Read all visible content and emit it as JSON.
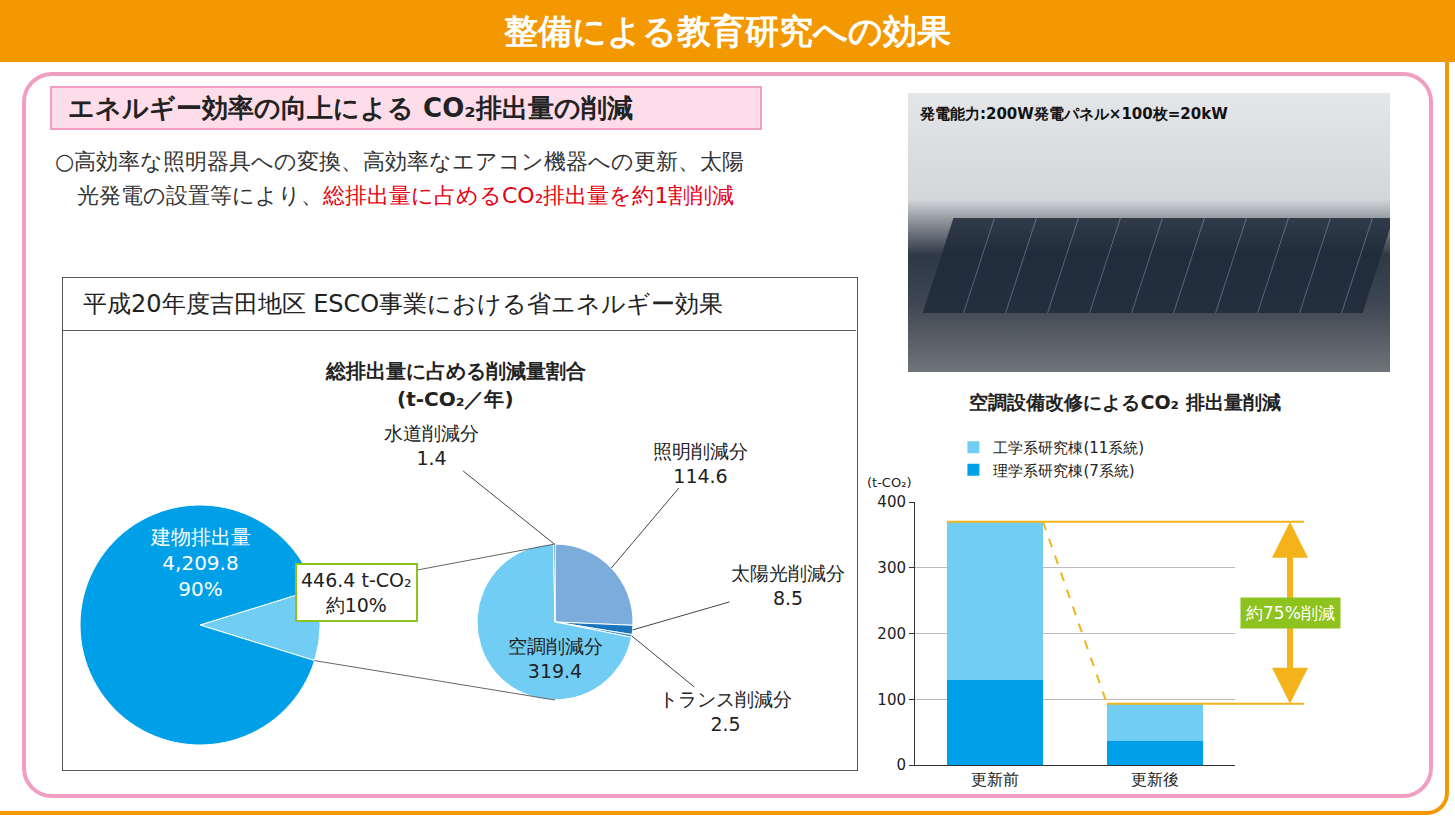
{
  "header": {
    "title": "整備による教育研究への効果"
  },
  "section": {
    "title": "エネルギー効率の向上による CO₂排出量の削減",
    "text": [
      {
        "text": "○高効率な照明器具への変換、高効率なエアコン機器への更新、太陽光発電の設置等により、",
        "color": "#333333"
      },
      {
        "text": "総排出量に占めるCO₂排出量を約1割削減",
        "color": "#e60012"
      }
    ]
  },
  "photo": {
    "caption": "発電能力:200W発電パネル×100枚=20kW"
  },
  "chart_data": [
    {
      "type": "pie",
      "title": "平成20年度吉田地区 ESCO事業における省エネルギー効果",
      "subtitle": [
        "総排出量に占める削減量割合",
        "(t-CO₂／年)"
      ],
      "data_labels": true,
      "pies": [
        {
          "categories": [
            null,
            "建物排出量"
          ],
          "values": [
            446.4,
            4209.8
          ],
          "value_labels": [
            "446.4 t-CO₂",
            "4,209.8"
          ],
          "percents": [
            10,
            90
          ],
          "percent_labels": [
            "約10%",
            "90%"
          ],
          "colors": [
            "#72cdf4",
            "#00a0e9"
          ]
        },
        {
          "categories": [
            "照明削減分",
            "太陽光削減分",
            "トランス削減分",
            "空調削減分",
            "水道削減分"
          ],
          "values": [
            114.6,
            8.5,
            2.5,
            319.4,
            1.4
          ],
          "colors": [
            "#7bacdc",
            "#1b75bc",
            "#3d8fd1",
            "#72cdf4",
            "#0d5a9e"
          ]
        }
      ]
    },
    {
      "type": "bar",
      "stacked": true,
      "title": "空調設備改修によるCO₂ 排出量削減",
      "y_label": "(t-CO₂)",
      "categories": [
        "更新前",
        "更新後"
      ],
      "series": [
        {
          "name": "理学系研究棟(7系統)",
          "color": "#00a0e9",
          "values": [
            130,
            37
          ]
        },
        {
          "name": "工学系研究棟(11系統)",
          "color": "#72cdf4",
          "values": [
            240,
            56
          ]
        }
      ],
      "ylim": [
        0,
        400
      ],
      "yticks": [
        0,
        100,
        200,
        300,
        400
      ],
      "grid": true,
      "legend": "top",
      "annotations": [
        {
          "text": "約75%削減",
          "color": "#8dc21f"
        }
      ]
    }
  ]
}
